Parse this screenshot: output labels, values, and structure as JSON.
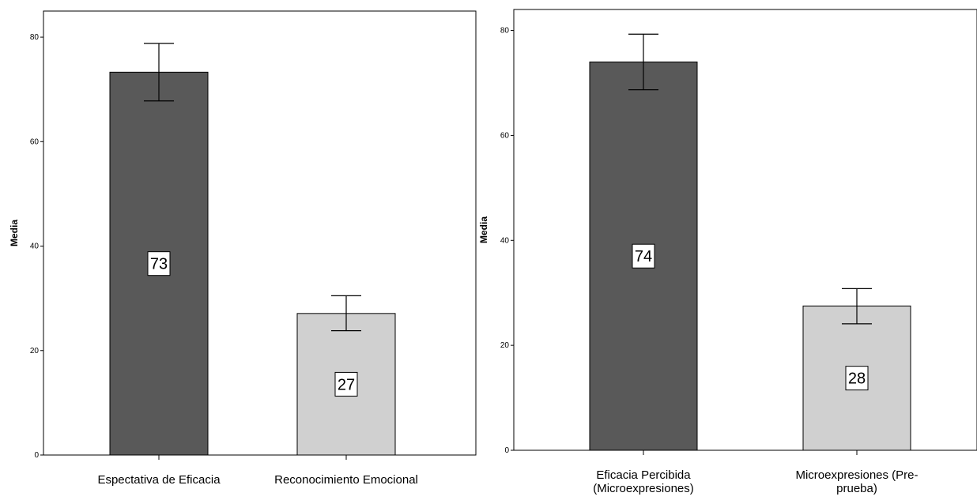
{
  "chart_data": [
    {
      "type": "bar",
      "title": "",
      "xlabel": "",
      "ylabel": "Media",
      "ylim": [
        0,
        85
      ],
      "yticks": [
        0,
        20,
        40,
        60,
        80
      ],
      "grid": false,
      "categories": [
        [
          "Espectativa de Eficacia"
        ],
        [
          "Reconocimiento Emocional"
        ]
      ],
      "values": [
        73.3,
        27.1
      ],
      "error_low": [
        67.8,
        23.8
      ],
      "error_high": [
        78.8,
        30.5
      ],
      "data_labels": [
        "73",
        "27"
      ],
      "colors": [
        "#595959",
        "#d0d0d0"
      ]
    },
    {
      "type": "bar",
      "title": "",
      "xlabel": "",
      "ylabel": "Media",
      "ylim": [
        0,
        84
      ],
      "yticks": [
        0,
        20,
        40,
        60,
        80
      ],
      "grid": false,
      "categories": [
        [
          "Eficacia Percibida",
          "(Microexpresiones)"
        ],
        [
          "Microexpresiones (Pre-",
          "prueba)"
        ]
      ],
      "values": [
        74.0,
        27.5
      ],
      "error_low": [
        68.7,
        24.1
      ],
      "error_high": [
        79.3,
        30.8
      ],
      "data_labels": [
        "74",
        "28"
      ],
      "colors": [
        "#595959",
        "#d0d0d0"
      ]
    }
  ]
}
